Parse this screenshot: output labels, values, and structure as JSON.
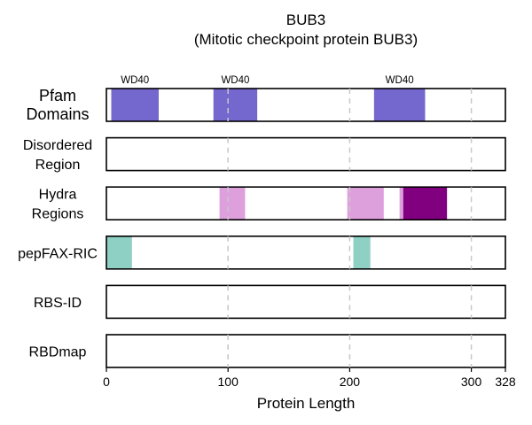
{
  "chart_data": {
    "type": "bar",
    "title": "BUB3",
    "subtitle": "(Mitotic checkpoint protein BUB3)",
    "xlabel": "Protein Length",
    "xlim": [
      0,
      328
    ],
    "xticks": [
      0,
      100,
      200,
      300,
      328
    ],
    "grid_x": [
      100,
      200,
      300
    ],
    "tracks": [
      {
        "name": "Pfam\nDomains",
        "segments": [
          {
            "start": 4,
            "end": 43,
            "label": "WD40",
            "color": "#7467cd"
          },
          {
            "start": 88,
            "end": 124,
            "label": "WD40",
            "color": "#7467cd"
          },
          {
            "start": 220,
            "end": 262,
            "label": "WD40",
            "color": "#7467cd"
          }
        ]
      },
      {
        "name": "Disordered\nRegion",
        "segments": []
      },
      {
        "name": "Hydra\nRegions",
        "segments": [
          {
            "start": 93,
            "end": 114,
            "color": "#dda0dd"
          },
          {
            "start": 198,
            "end": 228,
            "color": "#dda0dd"
          },
          {
            "start": 241,
            "end": 244,
            "color": "#dda0dd"
          },
          {
            "start": 244,
            "end": 280,
            "color": "#800080"
          }
        ]
      },
      {
        "name": "pepFAX-RIC",
        "segments": [
          {
            "start": 0,
            "end": 21,
            "color": "#8fd0c4"
          },
          {
            "start": 203,
            "end": 217,
            "color": "#8fd0c4"
          }
        ]
      },
      {
        "name": "RBS-ID",
        "segments": []
      },
      {
        "name": "RBDmap",
        "segments": []
      }
    ]
  }
}
